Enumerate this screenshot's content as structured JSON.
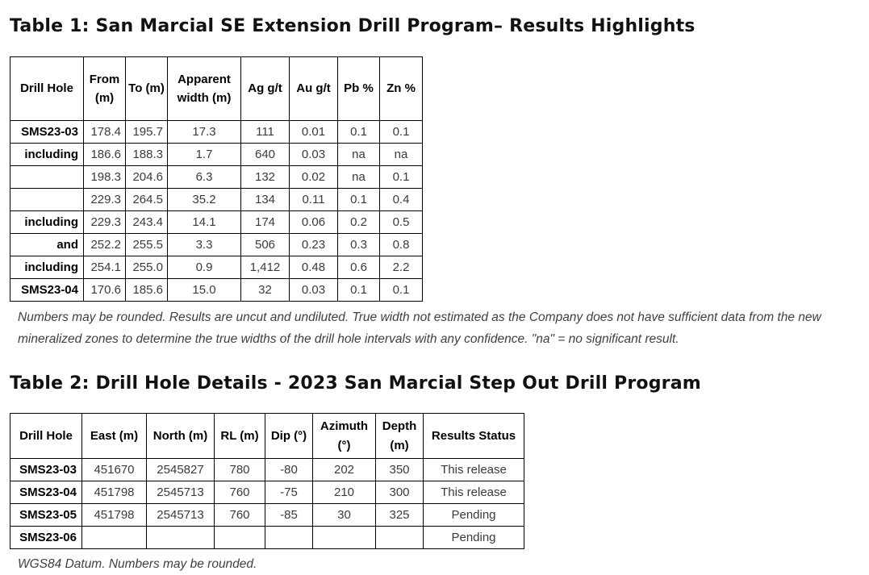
{
  "page": {
    "background_color": "#ffffff",
    "border_color": "#000000",
    "title_color": "#111111",
    "footnote_color": "#3f3f3f"
  },
  "table1": {
    "title": "Table 1: San Marcial SE Extension Drill Program– Results Highlights",
    "columns": [
      "Drill Hole",
      "From (m)",
      "To (m)",
      "Apparent width (m)",
      "Ag g/t",
      "Au g/t",
      "Pb %",
      "Zn %"
    ],
    "rows": [
      [
        "SMS23-03",
        "178.4",
        "195.7",
        "17.3",
        "111",
        "0.01",
        "0.1",
        "0.1"
      ],
      [
        "including",
        "186.6",
        "188.3",
        "1.7",
        "640",
        "0.03",
        "na",
        "na"
      ],
      [
        "",
        "198.3",
        "204.6",
        "6.3",
        "132",
        "0.02",
        "na",
        "0.1"
      ],
      [
        "",
        "229.3",
        "264.5",
        "35.2",
        "134",
        "0.11",
        "0.1",
        "0.4"
      ],
      [
        "including",
        "229.3",
        "243.4",
        "14.1",
        "174",
        "0.06",
        "0.2",
        "0.5"
      ],
      [
        "and",
        "252.2",
        "255.5",
        "3.3",
        "506",
        "0.23",
        "0.3",
        "0.8"
      ],
      [
        "including",
        "254.1",
        "255.0",
        "0.9",
        "1,412",
        "0.48",
        "0.6",
        "2.2"
      ],
      [
        "SMS23-04",
        "170.6",
        "185.6",
        "15.0",
        "32",
        "0.03",
        "0.1",
        "0.1"
      ]
    ],
    "footnote": "Numbers may be rounded. Results are uncut and undiluted. True width not estimated as the Company does not have sufficient data from the new mineralized zones to determine the true widths of the drill hole intervals with any confidence. \"na\" = no significant result."
  },
  "table2": {
    "title": "Table 2: Drill Hole Details - 2023 San Marcial Step Out Drill Program",
    "columns": [
      "Drill Hole",
      "East (m)",
      "North (m)",
      "RL (m)",
      "Dip (°)",
      "Azimuth (°)",
      "Depth (m)",
      "Results Status"
    ],
    "rows": [
      [
        "SMS23-03",
        "451670",
        "2545827",
        "780",
        "-80",
        "202",
        "350",
        "This release"
      ],
      [
        "SMS23-04",
        "451798",
        "2545713",
        "760",
        "-75",
        "210",
        "300",
        "This release"
      ],
      [
        "SMS23-05",
        "451798",
        "2545713",
        "760",
        "-85",
        "30",
        "325",
        "Pending"
      ],
      [
        "SMS23-06",
        "",
        "",
        "",
        "",
        "",
        "",
        "Pending"
      ]
    ],
    "footnote": "WGS84 Datum. Numbers may be rounded."
  }
}
